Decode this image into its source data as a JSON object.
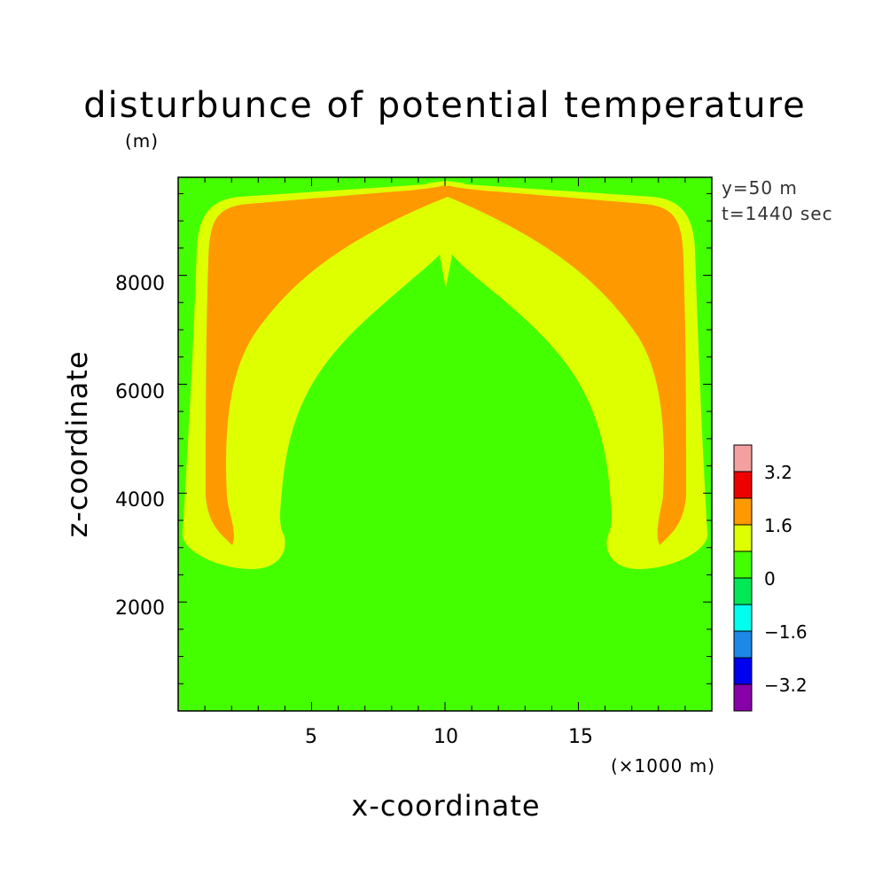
{
  "chart_data": {
    "type": "heatmap",
    "title": "disturbunce of potential temperature",
    "ylabel": "z-coordinate",
    "y_unit": "(m)",
    "xlabel": "x-coordinate",
    "x_unit": "(×1000 m)",
    "x_range": [
      0,
      20
    ],
    "y_range": [
      0,
      9800
    ],
    "x_ticks": [
      5,
      10,
      15
    ],
    "x_tick_labels": [
      "5",
      "10",
      "15"
    ],
    "y_ticks": [
      2000,
      4000,
      6000,
      8000
    ],
    "y_tick_labels": [
      "2000",
      "4000",
      "6000",
      "8000"
    ],
    "annotations": [
      "y=50 m",
      "t=1440 sec"
    ],
    "colorbar": {
      "boundaries": [
        -4.0,
        -3.2,
        -2.4,
        -1.6,
        -0.8,
        0,
        0.8,
        1.6,
        2.4,
        3.2,
        4.0
      ],
      "colors": [
        "#8800a8",
        "#0000ee",
        "#1e88e8",
        "#00ffee",
        "#00e855",
        "#44ff00",
        "#ddff00",
        "#ff9900",
        "#ee0000",
        "#f4a0a0"
      ],
      "labels": [
        "3.2",
        "1.6",
        "0",
        "-1.6",
        "-3.2"
      ],
      "label_values": [
        3.2,
        1.6,
        0,
        -1.6,
        -3.2
      ]
    },
    "regions": [
      {
        "band": "0 to 0.8",
        "color": "#44ff00",
        "description": "background"
      },
      {
        "band": "0.8 to 1.6",
        "color": "#ddff00",
        "description": "outer arch of thermal"
      },
      {
        "band": "1.6 to 2.4",
        "color": "#ff9900",
        "description": "inner arch of thermal"
      }
    ]
  }
}
